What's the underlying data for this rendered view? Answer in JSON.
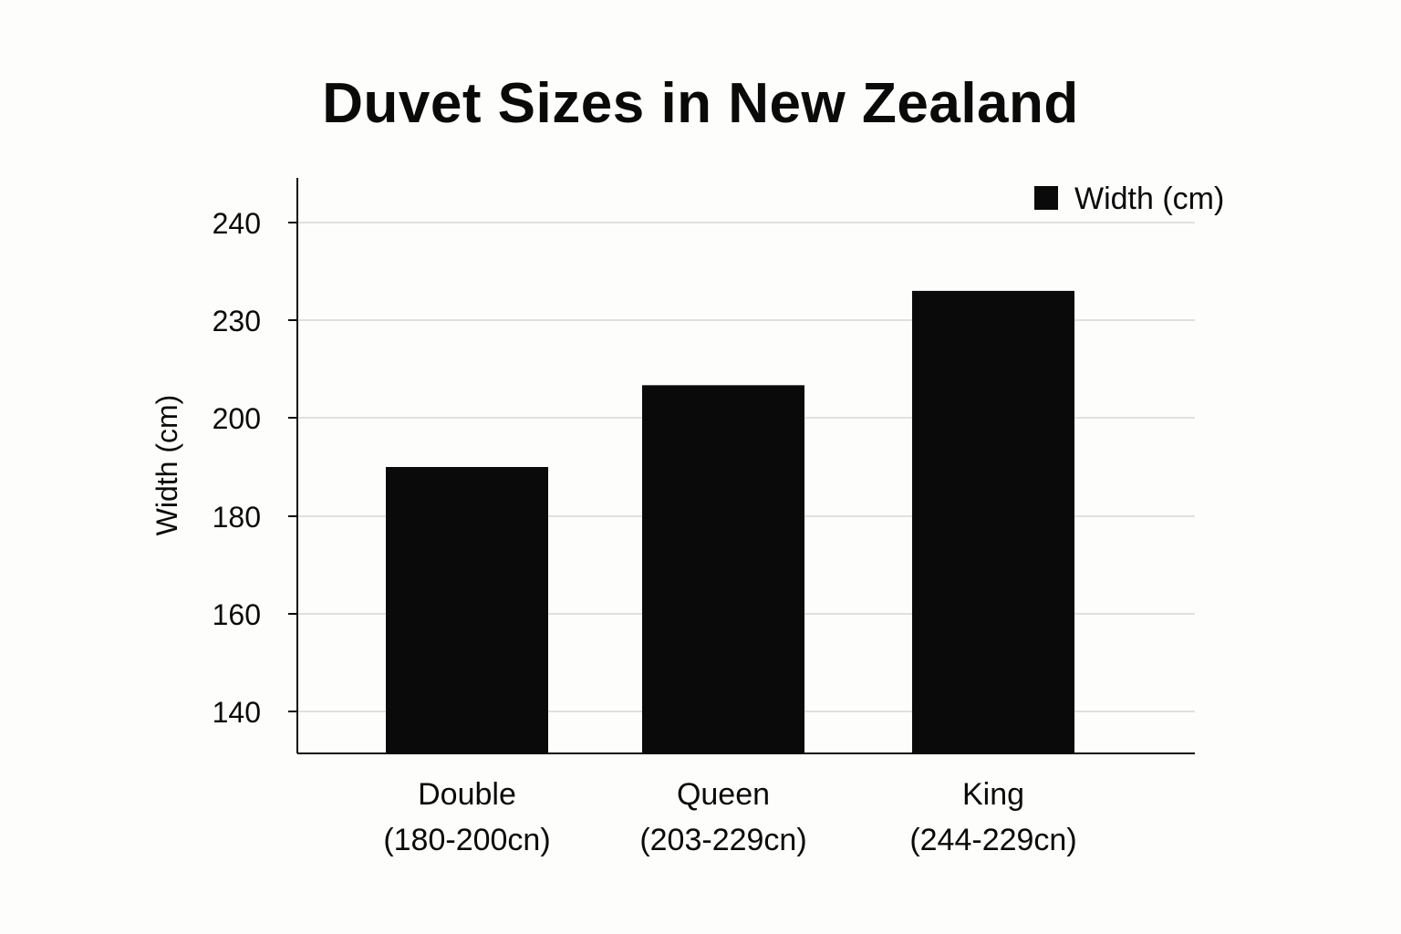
{
  "chart_data": {
    "type": "bar",
    "title": "Duvet Sizes in New Zealand",
    "xlabel": "",
    "ylabel": "Width (cm)",
    "y_tick_labels": [
      "140",
      "160",
      "180",
      "200",
      "230",
      "240"
    ],
    "categories": [
      "Double",
      "Queen",
      "King"
    ],
    "category_sublabels": [
      "(180-200cn)",
      "(203-229cn)",
      "(244-229cn)"
    ],
    "series": [
      {
        "name": "Width (cm)",
        "values": [
          190,
          210,
          233
        ],
        "color": "#0a0a0a"
      }
    ],
    "grid": true,
    "legend": "top-right"
  }
}
